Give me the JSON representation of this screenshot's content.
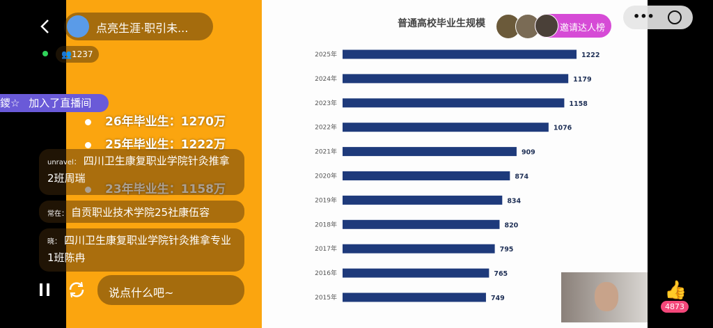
{
  "header": {
    "room_title": "点亮生涯·职引未...",
    "viewers": "1237",
    "invite": "邀请达人榜"
  },
  "join_notice": {
    "user": "鑁☆",
    "text": "加入了直播间"
  },
  "slide": {
    "bullets": [
      "26年毕业生：1270万",
      "25年毕业生：1222万",
      "23年毕业生：1158万"
    ]
  },
  "comments": [
    {
      "user": "unravel：",
      "text": "四川卫生康复职业学院针灸推拿2班周瑞"
    },
    {
      "user": "常在：",
      "text": "自贡职业技术学院25社康伍容"
    },
    {
      "user": "晓：",
      "text": "四川卫生康复职业学院针灸推拿专业1班陈冉"
    }
  ],
  "input_placeholder": "说点什么吧~",
  "likes": "4873",
  "chart_data": {
    "type": "bar",
    "orientation": "horizontal",
    "title": "普通高校毕业生规模",
    "categories": [
      "2025年",
      "2024年",
      "2023年",
      "2022年",
      "2021年",
      "2020年",
      "2019年",
      "2018年",
      "2017年",
      "2016年",
      "2015年"
    ],
    "values": [
      1222,
      1179,
      1158,
      1076,
      909,
      874,
      834,
      820,
      795,
      765,
      749
    ],
    "color": "#1e3a7b"
  }
}
